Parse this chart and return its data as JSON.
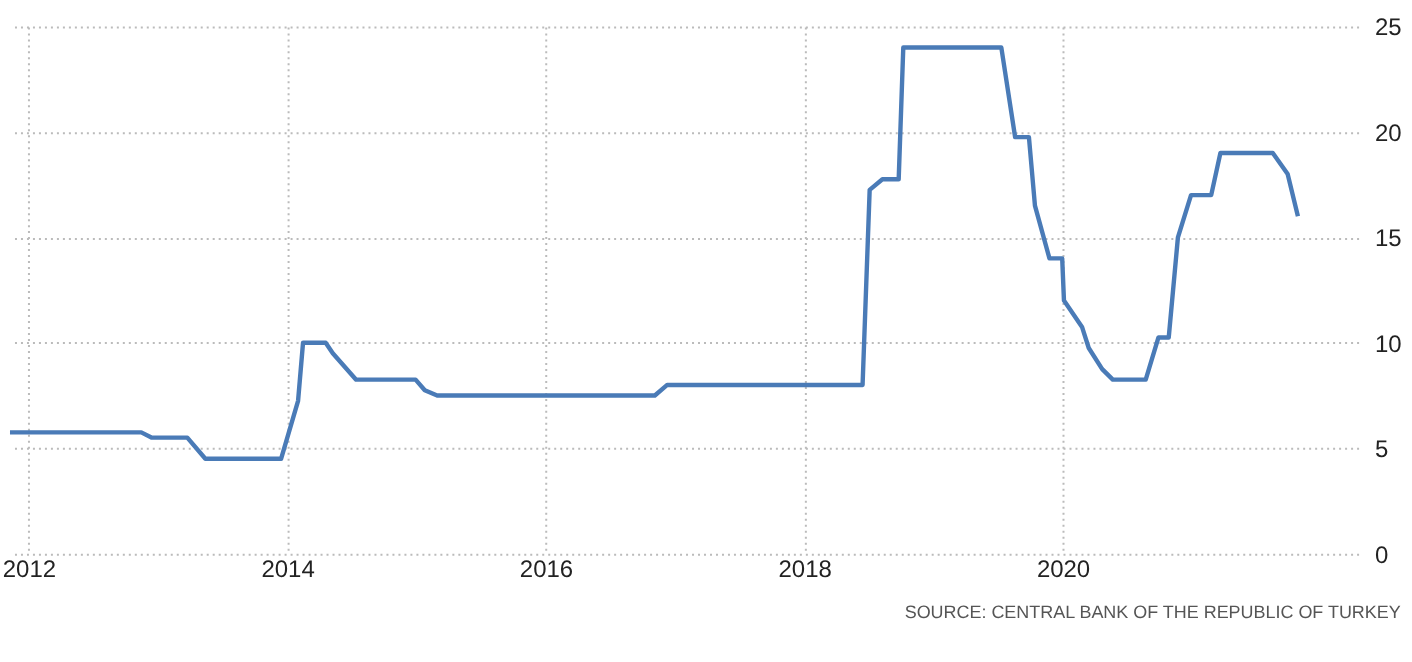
{
  "chart_data": {
    "type": "line",
    "x": [
      "2011-11-10",
      "2012-11-15",
      "2012-12-15",
      "2013-03-25",
      "2013-05-15",
      "2013-12-15",
      "2014-02-01",
      "2014-02-15",
      "2014-04-20",
      "2014-05-10",
      "2014-07-15",
      "2014-12-30",
      "2015-01-25",
      "2015-03-01",
      "2016-11-05",
      "2016-12-10",
      "2018-06-15",
      "2018-07-05",
      "2018-08-10",
      "2018-09-25",
      "2018-10-08",
      "2019-07-12",
      "2019-08-20",
      "2019-09-28",
      "2019-10-15",
      "2019-11-25",
      "2019-12-31",
      "2020-01-05",
      "2020-02-25",
      "2020-03-15",
      "2020-04-22",
      "2020-05-22",
      "2020-08-23",
      "2020-09-28",
      "2020-10-27",
      "2020-11-22",
      "2020-12-29",
      "2021-02-24",
      "2021-03-22",
      "2021-08-17",
      "2021-09-28",
      "2021-10-27"
    ],
    "series": [
      {
        "color": "#4a7bb7",
        "values": [
          5.75,
          5.75,
          5.5,
          5.5,
          4.5,
          4.5,
          7.25,
          10,
          10,
          9.5,
          8.25,
          8.25,
          7.75,
          7.5,
          7.5,
          8,
          8,
          17.25,
          17.75,
          17.75,
          24,
          24,
          19.75,
          19.75,
          16.5,
          14,
          14,
          12,
          10.75,
          9.75,
          8.75,
          8.25,
          8.25,
          10.25,
          10.25,
          15,
          17,
          17,
          19,
          19,
          18,
          16
        ]
      }
    ],
    "xlim": [
      "2011-11-10",
      "2022-04-15"
    ],
    "xticks": [
      "2012",
      "2014",
      "2016",
      "2018",
      "2020"
    ],
    "ylim": [
      0,
      25
    ],
    "yticks": [
      0,
      5,
      10,
      15,
      20,
      25
    ],
    "grid": true,
    "marker": "none",
    "line_style": "solid",
    "annotations": [
      "SOURCE: CENTRAL BANK OF THE REPUBLIC OF TURKEY"
    ]
  }
}
